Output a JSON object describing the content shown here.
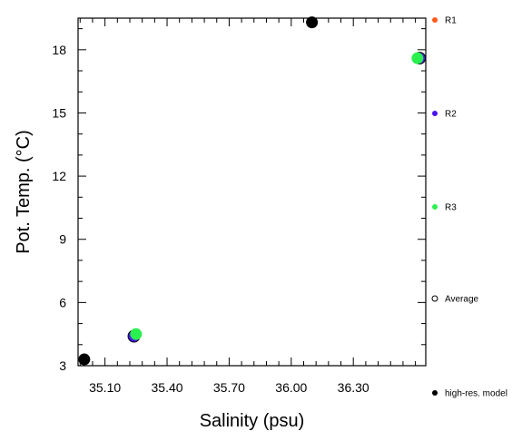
{
  "chart_data": {
    "type": "scatter",
    "xlabel": "Salinity (psu)",
    "ylabel": "Pot. Temp. (°C)",
    "xlim": [
      34.97,
      36.65
    ],
    "ylim": [
      3,
      19.5
    ],
    "x_ticks": [
      35.1,
      35.4,
      35.7,
      36.0,
      36.3
    ],
    "x_tick_labels": [
      "35.10",
      "35.40",
      "35.70",
      "36.00",
      "36.30"
    ],
    "y_ticks": [
      3,
      6,
      9,
      12,
      15,
      18
    ],
    "y_tick_labels": [
      "3",
      "6",
      "9",
      "12",
      "15",
      "18"
    ],
    "grid": false,
    "legend_placement": "right, outside plot",
    "series": [
      {
        "name": "R1",
        "color": "#ff5a1e",
        "marker": "filled-circle",
        "points": [
          {
            "x": 35.24,
            "y": 4.4
          },
          {
            "x": 36.62,
            "y": 17.6
          }
        ]
      },
      {
        "name": "R2",
        "color": "#4c12ee",
        "marker": "filled-circle",
        "points": [
          {
            "x": 35.24,
            "y": 4.4
          },
          {
            "x": 36.62,
            "y": 17.6
          }
        ]
      },
      {
        "name": "R3",
        "color": "#2af04f",
        "marker": "filled-circle",
        "points": [
          {
            "x": 35.25,
            "y": 4.5
          },
          {
            "x": 36.61,
            "y": 17.6
          }
        ]
      },
      {
        "name": "Average",
        "color": "#000000",
        "marker": "open-circle",
        "points": [
          {
            "x": 35.24,
            "y": 4.4
          },
          {
            "x": 36.62,
            "y": 17.6
          }
        ]
      },
      {
        "name": "high-res. model",
        "color": "#000000",
        "marker": "filled-circle",
        "points": [
          {
            "x": 35.0,
            "y": 3.3
          },
          {
            "x": 36.1,
            "y": 19.3
          }
        ]
      }
    ]
  }
}
